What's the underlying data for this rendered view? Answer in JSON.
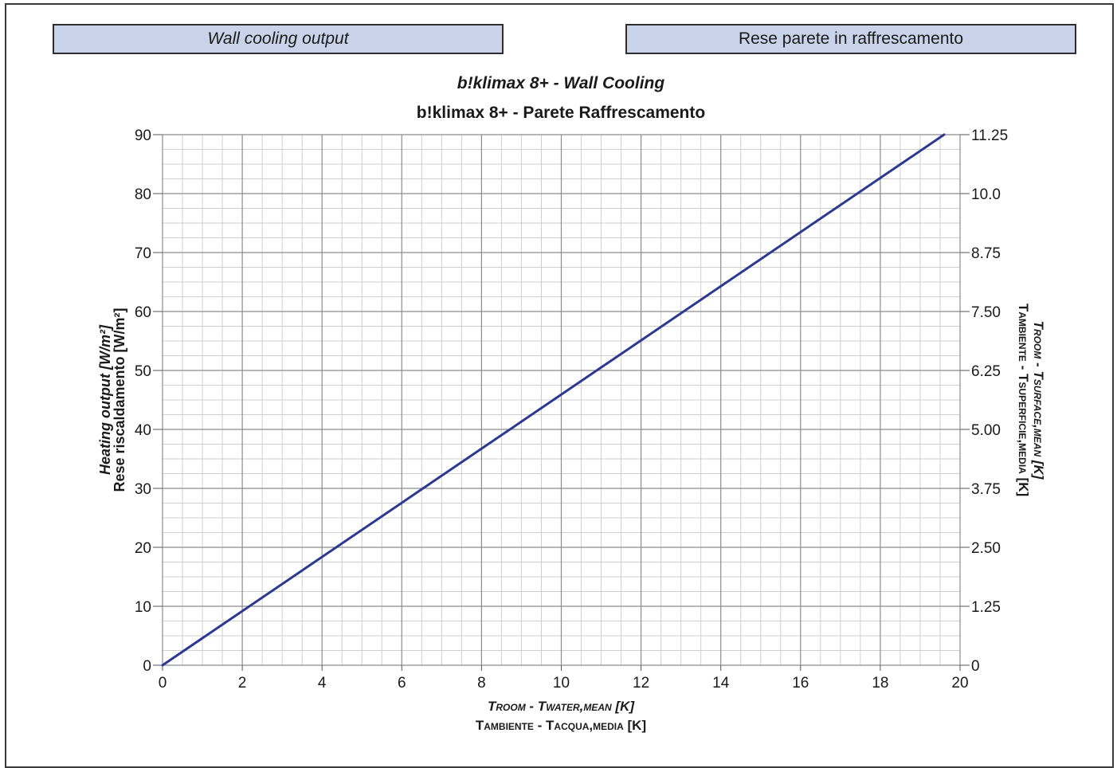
{
  "header": {
    "left_label": "Wall cooling output",
    "right_label": "Rese parete in raffrescamento"
  },
  "chart_data": {
    "type": "line",
    "title": "b!klimax 8+ - Wall Cooling",
    "subtitle": "b!klimax 8+ - Parete Raffrescamento",
    "xlabel_en": "Troom - Twater,mean [K]",
    "xlabel_it": "Tambiente - Tacqua,media [K]",
    "ylabel_en": "Heating output [W/m²]",
    "ylabel_it": "Rese riscaldamento [W/m²]",
    "y2label_en": "Troom - Tsurface,mean [K]",
    "y2label_it": "Tambiente - Tsuperficie,media [K]",
    "xlim": [
      0,
      20
    ],
    "ylim": [
      0,
      90
    ],
    "y2lim": [
      0,
      11.25
    ],
    "x_ticks": [
      "0",
      "2",
      "4",
      "6",
      "8",
      "10",
      "12",
      "14",
      "16",
      "18",
      "20"
    ],
    "y_ticks": [
      "0",
      "10",
      "20",
      "30",
      "40",
      "50",
      "60",
      "70",
      "80",
      "90"
    ],
    "y2_ticks": [
      "0",
      "1.25",
      "2.50",
      "3.75",
      "5.00",
      "6.25",
      "7.50",
      "8.75",
      "10.0",
      "11.25"
    ],
    "grid": true,
    "line_color": "#2b3990",
    "series": [
      {
        "x": [
          0,
          19.6
        ],
        "y": [
          0,
          90
        ]
      }
    ]
  }
}
